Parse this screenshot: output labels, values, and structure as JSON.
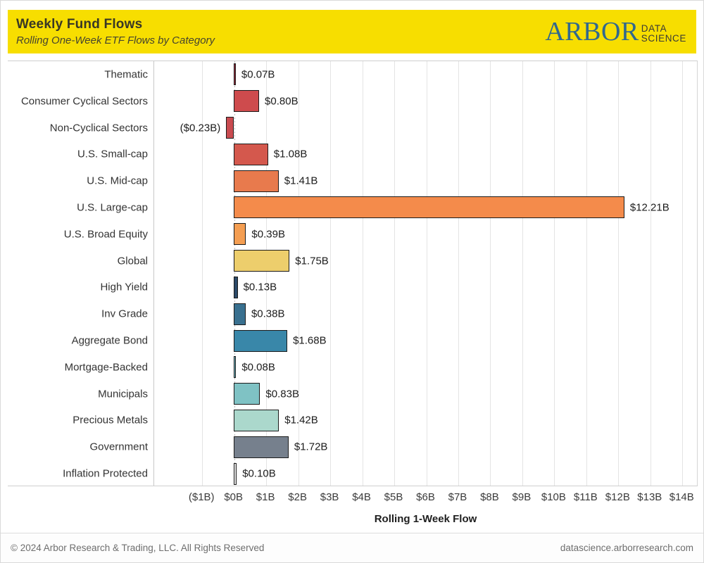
{
  "header": {
    "title": "Weekly Fund Flows",
    "subtitle": "Rolling One-Week ETF Flows by Category",
    "logo": {
      "brand": "ARBOR",
      "tag_line1": "DATA",
      "tag_line2": "SCIENCE",
      "brand_color": "#31688e",
      "background_color": "#f7de00"
    }
  },
  "chart_data": {
    "type": "bar",
    "orientation": "horizontal",
    "title": "Weekly Fund Flows",
    "subtitle": "Rolling One-Week ETF Flows by Category",
    "xlabel": "Rolling 1-Week Flow",
    "ylabel": "",
    "xlim": [
      -2.5,
      14.5
    ],
    "grid": true,
    "categories": [
      "Thematic",
      "Consumer Cyclical Sectors",
      "Non-Cyclical Sectors",
      "U.S. Small-cap",
      "U.S. Mid-cap",
      "U.S. Large-cap",
      "U.S. Broad Equity",
      "Global",
      "High Yield",
      "Inv Grade",
      "Aggregate Bond",
      "Mortgage-Backed",
      "Municipals",
      "Precious Metals",
      "Government",
      "Inflation Protected"
    ],
    "values": [
      0.07,
      0.8,
      -0.23,
      1.08,
      1.41,
      12.21,
      0.39,
      1.75,
      0.13,
      0.38,
      1.68,
      0.08,
      0.83,
      1.42,
      1.72,
      0.1
    ],
    "value_labels": [
      "$0.07B",
      "$0.80B",
      "($0.23B)",
      "$1.08B",
      "$1.41B",
      "$12.21B",
      "$0.39B",
      "$1.75B",
      "$0.13B",
      "$0.38B",
      "$1.68B",
      "$0.08B",
      "$0.83B",
      "$1.42B",
      "$1.72B",
      "$0.10B"
    ],
    "bar_colors": [
      "#9e2b3b",
      "#ce4b4d",
      "#c94b50",
      "#d4584d",
      "#e87a4d",
      "#f48b4b",
      "#f49e52",
      "#edce6c",
      "#2c4a68",
      "#39708f",
      "#3987a9",
      "#72b7c3",
      "#7fc2c4",
      "#abd8cc",
      "#76808d",
      "#e6e6e6"
    ],
    "x_ticks": {
      "values": [
        -1,
        0,
        1,
        2,
        3,
        4,
        5,
        6,
        7,
        8,
        9,
        10,
        11,
        12,
        13,
        14
      ],
      "labels": [
        "($1B)",
        "$0B",
        "$1B",
        "$2B",
        "$3B",
        "$4B",
        "$5B",
        "$6B",
        "$7B",
        "$8B",
        "$9B",
        "$10B",
        "$11B",
        "$12B",
        "$13B",
        "$14B"
      ]
    }
  },
  "footer": {
    "copyright": "© 2024 Arbor Research & Trading, LLC. All Rights Reserved",
    "website": "datascience.arborresearch.com"
  }
}
